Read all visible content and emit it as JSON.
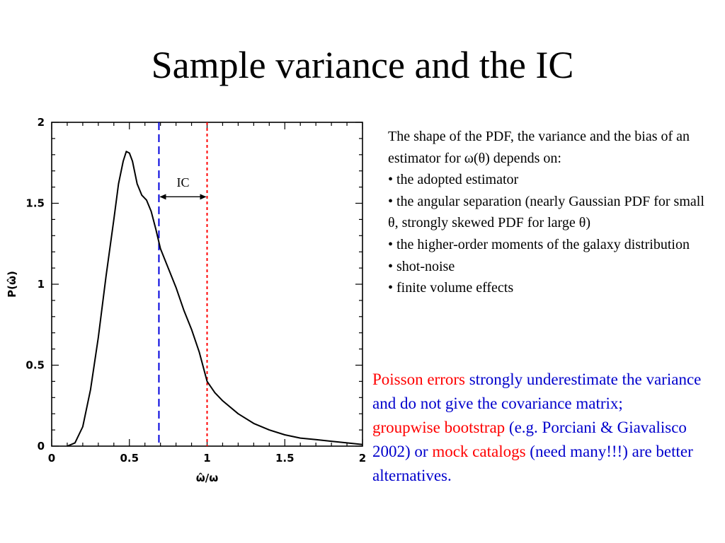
{
  "slide": {
    "title": "Sample variance and the IC"
  },
  "chart_data": {
    "type": "line",
    "xlabel": "ω̂/ω",
    "ylabel": "P(ω̂)",
    "xlim": [
      0,
      2
    ],
    "ylim": [
      0,
      2
    ],
    "x_ticks": [
      "0",
      "0.5",
      "1",
      "1.5",
      "2"
    ],
    "y_ticks": [
      "0",
      "0.5",
      "1",
      "1.5",
      "2"
    ],
    "series": [
      {
        "color": "#000000",
        "points": [
          [
            0.1,
            0.0
          ],
          [
            0.15,
            0.02
          ],
          [
            0.2,
            0.12
          ],
          [
            0.25,
            0.35
          ],
          [
            0.3,
            0.67
          ],
          [
            0.35,
            1.05
          ],
          [
            0.4,
            1.4
          ],
          [
            0.43,
            1.62
          ],
          [
            0.46,
            1.76
          ],
          [
            0.48,
            1.82
          ],
          [
            0.5,
            1.81
          ],
          [
            0.52,
            1.76
          ],
          [
            0.55,
            1.62
          ],
          [
            0.58,
            1.55
          ],
          [
            0.61,
            1.52
          ],
          [
            0.64,
            1.45
          ],
          [
            0.67,
            1.34
          ],
          [
            0.7,
            1.22
          ],
          [
            0.75,
            1.1
          ],
          [
            0.8,
            0.98
          ],
          [
            0.85,
            0.84
          ],
          [
            0.9,
            0.72
          ],
          [
            0.95,
            0.58
          ],
          [
            1.0,
            0.4
          ],
          [
            1.05,
            0.33
          ],
          [
            1.1,
            0.28
          ],
          [
            1.2,
            0.2
          ],
          [
            1.3,
            0.14
          ],
          [
            1.4,
            0.1
          ],
          [
            1.5,
            0.07
          ],
          [
            1.6,
            0.05
          ],
          [
            1.7,
            0.04
          ],
          [
            1.8,
            0.03
          ],
          [
            1.9,
            0.02
          ],
          [
            2.0,
            0.01
          ]
        ]
      }
    ],
    "vertical_lines": [
      {
        "x": 0.69,
        "color": "#0000dd",
        "style": "dashed"
      },
      {
        "x": 1.0,
        "color": "#ff0000",
        "style": "dotted"
      }
    ],
    "annotation": {
      "text": "IC",
      "x_from": 0.69,
      "x_to": 1.0,
      "y": 1.54,
      "label_y": 1.62
    }
  },
  "notes": {
    "lines": [
      "The shape of the PDF, the  variance and the bias of an estimator for ω(θ) depends on:",
      "• the adopted estimator",
      "• the angular separation (nearly Gaussian PDF for small θ, strongly skewed PDF for large θ)",
      "• the higher-order moments of the galaxy distribution",
      "• shot-noise",
      "• finite volume effects"
    ]
  },
  "conclusion": {
    "part1": "Poisson errors",
    "part2": " strongly underestimate the variance and do not give the covariance matrix;",
    "part3": "groupwise bootstrap",
    "part4": " (e.g. Porciani & Giavalisco 2002) or ",
    "part5": "mock catalogs",
    "part6": " (need many!!!) are better alternatives."
  },
  "colors": {
    "red": "#ff0000",
    "blue": "#0000cc"
  }
}
